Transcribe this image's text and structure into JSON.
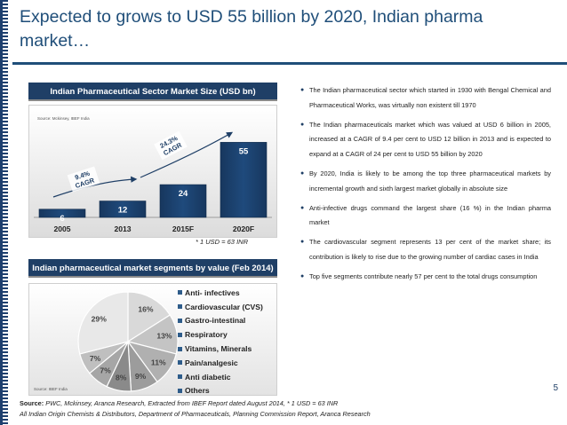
{
  "slide": {
    "title": "Expected to grows to USD 55 billion by 2020, Indian pharma market…",
    "page_number": "5"
  },
  "market_size": {
    "header": "Indian Pharmaceutical Sector Market Size (USD bn)",
    "source": "Source: Mckinsey, IBEF India",
    "usd_note": "* 1 USD = 63 INR",
    "cagr_labels": [
      "9.4% CAGR",
      "24.3% CAGR"
    ]
  },
  "segments": {
    "header": "Indian pharmaceutical market segments by value (Feb 2014)",
    "source": "Source: IBEF India"
  },
  "chart_data": [
    {
      "type": "bar",
      "title": "Indian Pharmaceutical Sector Market Size (USD bn)",
      "categories": [
        "2005",
        "2013",
        "2015F",
        "2020F"
      ],
      "values": [
        6,
        12,
        24,
        55
      ],
      "xlabel": "",
      "ylabel": "",
      "ylim": [
        0,
        65
      ],
      "annotations": [
        "9.4% CAGR",
        "24.3% CAGR"
      ],
      "grid": false
    },
    {
      "type": "pie",
      "title": "Indian pharmaceutical market segments by value (Feb 2014)",
      "labels": [
        "Anti- infectives",
        "Cardiovascular (CVS)",
        "Gastro-intestinal",
        "Respiratory",
        "Vitamins, Minerals",
        "Pain/analgesic",
        "Anti diabetic",
        "Others"
      ],
      "values": [
        16,
        13,
        11,
        9,
        8,
        7,
        7,
        29
      ],
      "value_labels": [
        "16%",
        "13%",
        "11%",
        "9%",
        "8%",
        "7%",
        "7%",
        "29%"
      ],
      "legend": "right"
    }
  ],
  "bullets": [
    "The Indian pharmaceutical sector which started in 1930 with Bengal Chemical and Pharmaceutical Works, was virtually non existent till 1970",
    "The Indian pharmaceuticals market which was valued at USD 6 billion in 2005, increased at a CAGR of 9.4 per cent  to USD 12 billion in 2013 and is expected to expand at a CAGR of 24 per cent to USD 55 billion by 2020",
    "By 2020, India is likely to be among the top three pharmaceutical markets by incremental growth and sixth largest market globally in absolute size",
    "Anti-infective drugs command the largest share (16 %) in the Indian pharma market",
    "The cardiovascular segment represents 13 per cent of the market share; its contribution is likely to rise due to the growing number of cardiac cases in India",
    "Top five segments contribute nearly 57 per cent to the total drugs consumption"
  ],
  "footer": {
    "source_label": "Source:",
    "line1": " PWC, Mckinsey, Aranca Research, Extracted from IBEF Report  dated August 2014, * 1 USD = 63 INR",
    "line2": "All Indian Origin Chemists & Distributors,  Department of Pharmaceuticals, Planning Commission Report, Aranca Research"
  },
  "colors": {
    "title": "#1f4e79",
    "header_bg": "#1f3f66",
    "bar": "#1f4a7c",
    "pie_slices": [
      "#d9d9d9",
      "#c4c4c4",
      "#b0b0b0",
      "#9c9c9c",
      "#8a8a8a",
      "#a6a6a6",
      "#bfbfbf",
      "#e8e8e8"
    ]
  }
}
